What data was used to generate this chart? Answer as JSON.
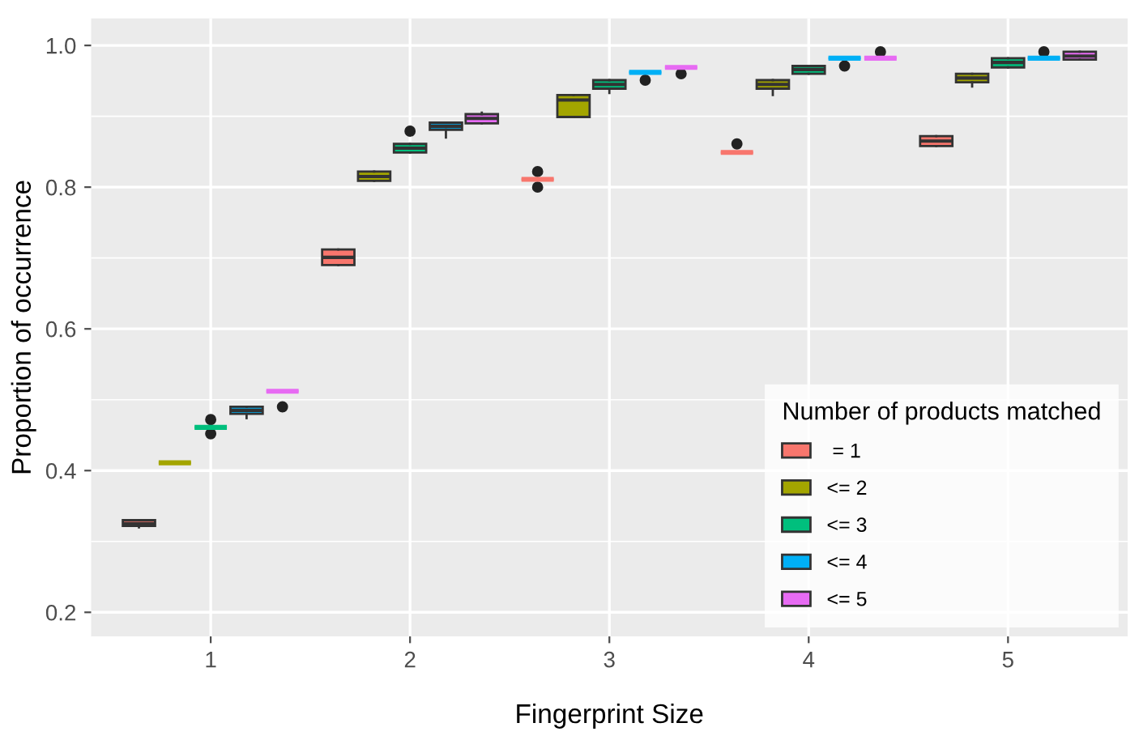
{
  "chart_data": {
    "type": "box",
    "xlabel": "Fingerprint Size",
    "ylabel": "Proportion of occurrence",
    "legend_title": "Number of products matched",
    "categories": [
      "1",
      "2",
      "3",
      "4",
      "5"
    ],
    "ylim": [
      0.166,
      1.038
    ],
    "yticks": [
      {
        "value": 0.2,
        "label": "0.2"
      },
      {
        "value": 0.4,
        "label": "0.4"
      },
      {
        "value": 0.6,
        "label": "0.6"
      },
      {
        "value": 0.8,
        "label": "0.8"
      },
      {
        "value": 1.0,
        "label": "1.0"
      }
    ],
    "grid": true,
    "legend": "bottom right",
    "series": [
      {
        "name": " = 1",
        "color": "#f8766d",
        "boxes": [
          {
            "low": 0.32,
            "q1": 0.322,
            "median": 0.325,
            "q3": 0.33,
            "high": 0.33
          },
          {
            "low": 0.69,
            "q1": 0.69,
            "median": 0.701,
            "q3": 0.712,
            "high": 0.712
          },
          {
            "low": 0.811,
            "q1": 0.811,
            "median": 0.811,
            "q3": 0.811,
            "high": 0.811,
            "outliers": [
              0.822,
              0.8
            ]
          },
          {
            "low": 0.849,
            "q1": 0.849,
            "median": 0.849,
            "q3": 0.849,
            "high": 0.849,
            "outliers": [
              0.861
            ]
          },
          {
            "low": 0.858,
            "q1": 0.858,
            "median": 0.865,
            "q3": 0.872,
            "high": 0.872
          }
        ]
      },
      {
        "name": "<= 2",
        "color": "#a3a500",
        "boxes": [
          {
            "low": 0.411,
            "q1": 0.411,
            "median": 0.411,
            "q3": 0.411,
            "high": 0.411
          },
          {
            "low": 0.809,
            "q1": 0.809,
            "median": 0.815,
            "q3": 0.822,
            "high": 0.822
          },
          {
            "low": 0.899,
            "q1": 0.899,
            "median": 0.923,
            "q3": 0.93,
            "high": 0.93
          },
          {
            "low": 0.93,
            "q1": 0.939,
            "median": 0.945,
            "q3": 0.951,
            "high": 0.951
          },
          {
            "low": 0.942,
            "q1": 0.948,
            "median": 0.954,
            "q3": 0.96,
            "high": 0.96
          }
        ]
      },
      {
        "name": "<= 3",
        "color": "#00bf7d",
        "boxes": [
          {
            "low": 0.461,
            "q1": 0.461,
            "median": 0.461,
            "q3": 0.461,
            "high": 0.461,
            "outliers": [
              0.472,
              0.452
            ]
          },
          {
            "low": 0.849,
            "q1": 0.849,
            "median": 0.855,
            "q3": 0.861,
            "high": 0.861,
            "outliers": [
              0.879
            ]
          },
          {
            "low": 0.933,
            "q1": 0.939,
            "median": 0.945,
            "q3": 0.951,
            "high": 0.951
          },
          {
            "low": 0.96,
            "q1": 0.96,
            "median": 0.966,
            "q3": 0.971,
            "high": 0.971
          },
          {
            "low": 0.969,
            "q1": 0.969,
            "median": 0.976,
            "q3": 0.982,
            "high": 0.982
          }
        ]
      },
      {
        "name": "<= 4",
        "color": "#00b0f6",
        "boxes": [
          {
            "low": 0.474,
            "q1": 0.48,
            "median": 0.485,
            "q3": 0.49,
            "high": 0.49
          },
          {
            "low": 0.87,
            "q1": 0.881,
            "median": 0.886,
            "q3": 0.891,
            "high": 0.891
          },
          {
            "low": 0.962,
            "q1": 0.962,
            "median": 0.962,
            "q3": 0.962,
            "high": 0.962,
            "outliers": [
              0.951
            ]
          },
          {
            "low": 0.982,
            "q1": 0.982,
            "median": 0.982,
            "q3": 0.982,
            "high": 0.982,
            "outliers": [
              0.971
            ]
          },
          {
            "low": 0.982,
            "q1": 0.982,
            "median": 0.982,
            "q3": 0.982,
            "high": 0.982,
            "outliers": [
              0.991
            ]
          }
        ]
      },
      {
        "name": "<= 5",
        "color": "#e76bf3",
        "boxes": [
          {
            "low": 0.512,
            "q1": 0.512,
            "median": 0.512,
            "q3": 0.512,
            "high": 0.512,
            "outliers": [
              0.49
            ]
          },
          {
            "low": 0.89,
            "q1": 0.89,
            "median": 0.897,
            "q3": 0.903,
            "high": 0.905
          },
          {
            "low": 0.969,
            "q1": 0.969,
            "median": 0.969,
            "q3": 0.969,
            "high": 0.969,
            "outliers": [
              0.96
            ]
          },
          {
            "low": 0.982,
            "q1": 0.982,
            "median": 0.982,
            "q3": 0.982,
            "high": 0.982,
            "outliers": [
              0.991
            ]
          },
          {
            "low": 0.98,
            "q1": 0.98,
            "median": 0.985,
            "q3": 0.991,
            "high": 0.991
          }
        ]
      }
    ]
  }
}
